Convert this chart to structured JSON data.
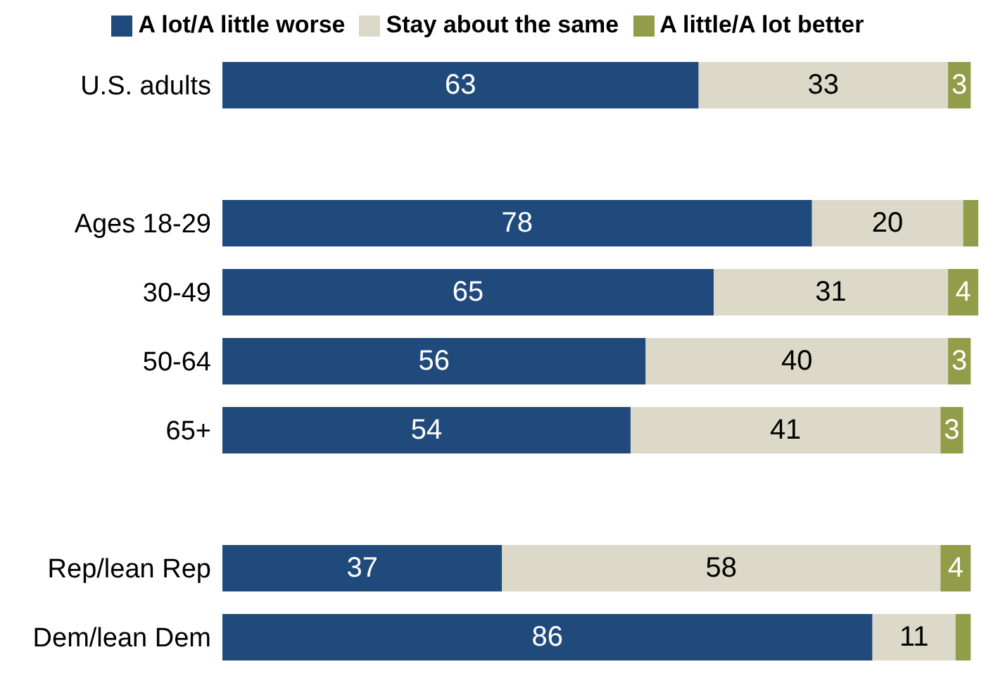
{
  "chart_data": {
    "type": "bar",
    "orientation": "horizontal",
    "stacked": true,
    "categories": [
      "U.S. adults",
      null,
      "Ages 18-29",
      "30-49",
      "50-64",
      "65+",
      null,
      "Rep/lean Rep",
      "Dem/lean Dem"
    ],
    "series": [
      {
        "name": "A lot/A little worse",
        "color": "#204a7c",
        "values": [
          63,
          null,
          78,
          65,
          56,
          54,
          null,
          37,
          86
        ],
        "value_labels": [
          "63",
          null,
          "78",
          "65",
          "56",
          "54",
          null,
          "37",
          "86"
        ]
      },
      {
        "name": "Stay about the same",
        "color": "#dcd9c8",
        "values": [
          33,
          null,
          20,
          31,
          40,
          41,
          null,
          58,
          11
        ],
        "value_labels": [
          "33",
          null,
          "20",
          "31",
          "40",
          "41",
          null,
          "58",
          "11"
        ]
      },
      {
        "name": "A little/A lot better",
        "color": "#919d48",
        "values": [
          3,
          null,
          2,
          4,
          3,
          3,
          null,
          4,
          2
        ],
        "value_labels": [
          "3",
          null,
          null,
          "4",
          "3",
          "3",
          null,
          "4",
          null
        ]
      }
    ],
    "xlim": [
      0,
      100
    ],
    "legend": "top",
    "tick_labels": "y"
  }
}
